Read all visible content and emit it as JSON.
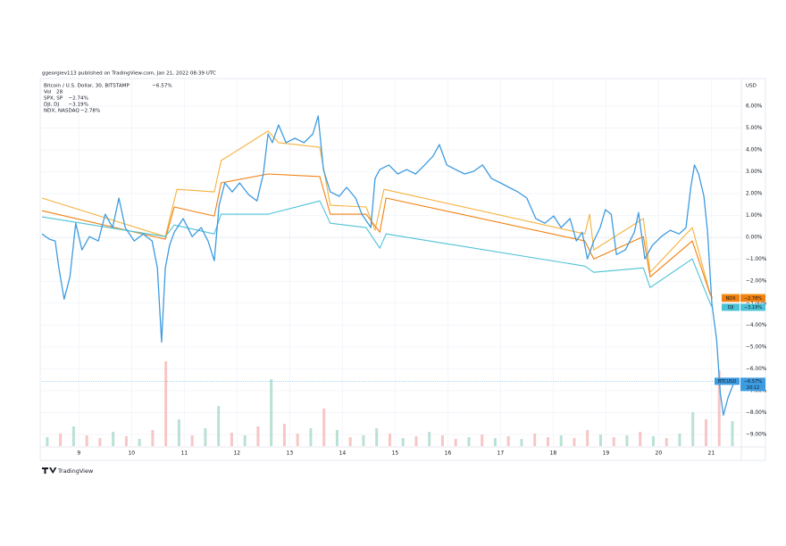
{
  "chart_data": {
    "type": "line",
    "attribution": "ggeorgiev113 published on TradingView.com, Jan 21, 2022 08:39 UTC",
    "currency_label": "USD",
    "brand": "TradingView",
    "xlim": [
      8.3,
      21.57
    ],
    "xticks": [
      9,
      10,
      11,
      12,
      13,
      14,
      15,
      16,
      17,
      18,
      19,
      20,
      21
    ],
    "ylim": [
      -9.53,
      7.26
    ],
    "yticks": [
      {
        "value": 6,
        "label": "6.00%"
      },
      {
        "value": 5,
        "label": "5.00%"
      },
      {
        "value": 4,
        "label": "4.00%"
      },
      {
        "value": 3,
        "label": "3.00%"
      },
      {
        "value": 2,
        "label": "2.00%"
      },
      {
        "value": 1,
        "label": "1.00%"
      },
      {
        "value": 0,
        "label": "0.00%"
      },
      {
        "value": -1,
        "label": "−1.00%"
      },
      {
        "value": -2,
        "label": "−2.00%"
      },
      {
        "value": -3,
        "label": "−3.00%"
      },
      {
        "value": -4,
        "label": "−4.00%"
      },
      {
        "value": -5,
        "label": "−5.00%"
      },
      {
        "value": -6,
        "label": "−6.00%"
      },
      {
        "value": -7,
        "label": "−7.00%"
      },
      {
        "value": -8,
        "label": "−8.00%"
      },
      {
        "value": -9,
        "label": "−9.00%"
      }
    ],
    "grid": true,
    "series": [
      {
        "name": "Bitcoin / U.S. Dollar, 30, BITSTAMP",
        "short_name": "BTCUSD",
        "color": "#3d9be0",
        "value_label": "−6.57%",
        "countdown": "20:12",
        "x": [
          8.3,
          8.44,
          8.55,
          8.62,
          8.72,
          8.83,
          8.94,
          9.06,
          9.2,
          9.37,
          9.5,
          9.64,
          9.76,
          9.88,
          10.05,
          10.22,
          10.39,
          10.49,
          10.57,
          10.64,
          10.72,
          10.81,
          10.98,
          11.15,
          11.32,
          11.45,
          11.57,
          11.66,
          11.77,
          11.91,
          12.05,
          12.22,
          12.38,
          12.5,
          12.59,
          12.67,
          12.79,
          12.93,
          13.1,
          13.27,
          13.44,
          13.54,
          13.64,
          13.77,
          13.94,
          14.08,
          14.25,
          14.37,
          14.54,
          14.62,
          14.71,
          14.88,
          15.05,
          15.22,
          15.39,
          15.56,
          15.72,
          15.84,
          15.98,
          16.15,
          16.32,
          16.49,
          16.66,
          16.83,
          17.0,
          17.16,
          17.33,
          17.5,
          17.67,
          17.84,
          18.01,
          18.15,
          18.32,
          18.44,
          18.55,
          18.65,
          18.77,
          18.89,
          18.99,
          19.1,
          19.2,
          19.37,
          19.54,
          19.62,
          19.74,
          19.88,
          20.05,
          20.22,
          20.39,
          20.52,
          20.61,
          20.68,
          20.76,
          20.86,
          20.93,
          21.01,
          21.1,
          21.17,
          21.23,
          21.32,
          21.44
        ],
        "values": [
          0.16,
          -0.08,
          -0.16,
          -1.39,
          -2.82,
          -1.8,
          0.65,
          -0.57,
          0.04,
          -0.16,
          1.06,
          0.45,
          1.8,
          0.45,
          -0.16,
          0.16,
          -0.16,
          -1.39,
          -4.78,
          -1.39,
          -0.37,
          0.24,
          0.86,
          0.04,
          0.45,
          -0.16,
          -1.06,
          1.47,
          2.49,
          2.08,
          2.49,
          1.96,
          1.67,
          2.9,
          4.73,
          4.33,
          5.14,
          4.33,
          4.53,
          4.33,
          4.73,
          5.55,
          3.1,
          2.08,
          1.88,
          2.29,
          1.8,
          1.06,
          0.45,
          2.69,
          3.1,
          3.31,
          2.9,
          3.1,
          2.9,
          3.31,
          3.71,
          4.24,
          3.31,
          3.1,
          2.9,
          3.02,
          3.31,
          2.69,
          2.49,
          2.29,
          2.08,
          1.8,
          0.86,
          0.65,
          0.98,
          0.45,
          0.86,
          -0.16,
          0.24,
          -0.98,
          -0.16,
          0.45,
          1.27,
          1.06,
          -0.78,
          -0.57,
          0.24,
          1.14,
          -0.98,
          -0.37,
          0.04,
          0.33,
          0.16,
          0.45,
          2.29,
          3.31,
          2.9,
          1.88,
          0.24,
          -3.02,
          -4.65,
          -7.1,
          -8.12,
          -7.31,
          -6.57
        ]
      },
      {
        "name": "SPX, SP",
        "short_name": "SPX",
        "color": "#f5b23d",
        "value_label": "−2.74%",
        "x": [
          8.3,
          10.64,
          10.86,
          11.57,
          11.7,
          12.59,
          12.79,
          13.57,
          13.77,
          14.45,
          14.62,
          14.79,
          18.6,
          18.69,
          18.77,
          19.71,
          19.84,
          20.64,
          20.98,
          21.02
        ],
        "values": [
          1.8,
          0.04,
          2.2,
          2.08,
          3.51,
          4.86,
          4.33,
          4.12,
          1.47,
          1.39,
          0.33,
          2.2,
          0.16,
          1.06,
          -0.57,
          0.86,
          -1.59,
          0.45,
          -2.61,
          -2.74
        ]
      },
      {
        "name": "DJI, DJ",
        "short_name": "DJI",
        "color": "#4cc2d6",
        "value_label": "−3.19%",
        "x": [
          8.3,
          10.64,
          10.81,
          11.57,
          11.7,
          12.59,
          13.57,
          13.77,
          14.45,
          14.71,
          14.83,
          18.6,
          18.77,
          19.71,
          19.84,
          20.64,
          20.98,
          21.02
        ],
        "values": [
          0.94,
          0.04,
          0.57,
          0.16,
          1.06,
          1.06,
          1.67,
          0.65,
          0.45,
          -0.49,
          0.16,
          -1.31,
          -1.59,
          -1.39,
          -2.29,
          -0.98,
          -3.02,
          -3.19
        ]
      },
      {
        "name": "NDX, NASDAQ",
        "short_name": "NDX",
        "color": "#f0800f",
        "value_label": "−2.78%",
        "x": [
          8.3,
          10.64,
          10.81,
          11.57,
          11.7,
          12.59,
          13.57,
          13.77,
          14.45,
          14.71,
          14.83,
          18.6,
          18.77,
          19.71,
          19.84,
          20.64,
          20.98,
          21.02
        ],
        "values": [
          1.22,
          -0.08,
          1.39,
          0.98,
          2.49,
          2.9,
          2.78,
          1.06,
          1.06,
          0.24,
          1.8,
          -0.16,
          -0.98,
          0.04,
          -1.8,
          -0.16,
          -2.61,
          -2.78
        ]
      }
    ],
    "volume": {
      "name": "Vol",
      "up_color": "#a9d9cb",
      "down_color": "#f5b8b8",
      "ylim": [
        0,
        100
      ],
      "x": [
        8.4,
        8.65,
        8.9,
        9.15,
        9.4,
        9.65,
        9.9,
        10.15,
        10.4,
        10.65,
        10.9,
        11.15,
        11.4,
        11.65,
        11.9,
        12.15,
        12.4,
        12.65,
        12.9,
        13.15,
        13.4,
        13.65,
        13.9,
        14.15,
        14.4,
        14.65,
        14.9,
        15.15,
        15.4,
        15.65,
        15.9,
        16.15,
        16.4,
        16.65,
        16.9,
        17.15,
        17.4,
        17.65,
        17.9,
        18.15,
        18.4,
        18.65,
        18.9,
        19.15,
        19.4,
        19.65,
        19.9,
        20.15,
        20.4,
        20.65,
        20.9,
        21.15,
        21.4
      ],
      "values": [
        10,
        14,
        22,
        12,
        9,
        16,
        11,
        8,
        18,
        95,
        30,
        12,
        20,
        45,
        15,
        12,
        22,
        75,
        25,
        14,
        20,
        42,
        18,
        10,
        12,
        20,
        14,
        9,
        11,
        16,
        12,
        8,
        10,
        13,
        9,
        11,
        8,
        14,
        10,
        12,
        9,
        18,
        13,
        10,
        12,
        16,
        11,
        9,
        14,
        38,
        30,
        85,
        28
      ],
      "up": [
        true,
        false,
        true,
        false,
        false,
        true,
        false,
        true,
        false,
        false,
        true,
        false,
        true,
        true,
        false,
        true,
        false,
        true,
        false,
        false,
        true,
        false,
        true,
        false,
        true,
        true,
        false,
        true,
        false,
        true,
        false,
        false,
        true,
        false,
        true,
        false,
        true,
        false,
        false,
        true,
        false,
        false,
        true,
        false,
        true,
        false,
        true,
        false,
        true,
        true,
        false,
        false,
        true
      ]
    }
  }
}
